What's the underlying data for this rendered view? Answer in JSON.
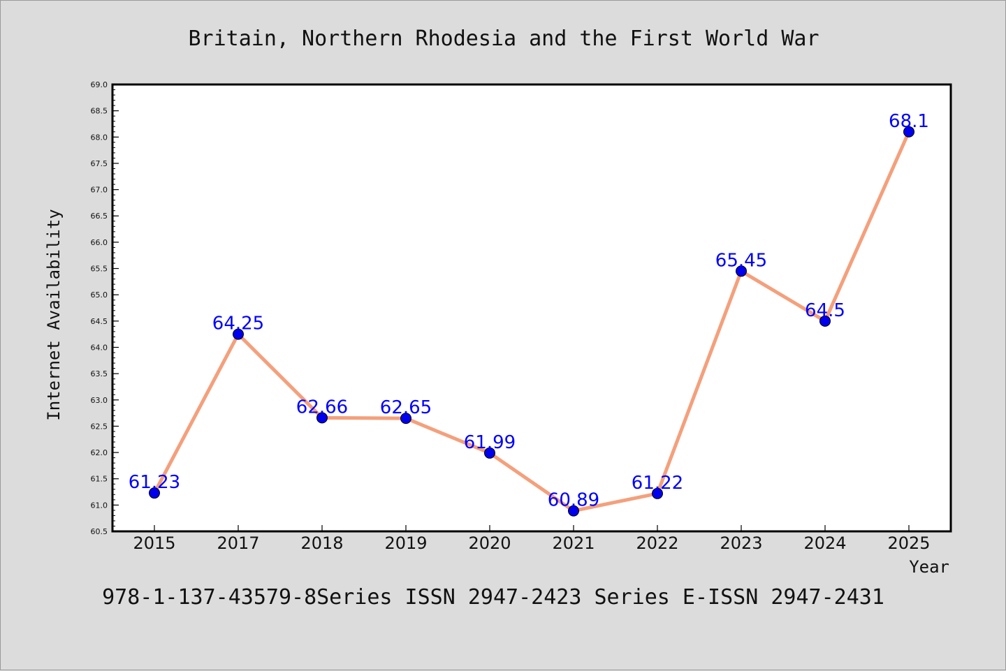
{
  "chart_data": {
    "type": "line",
    "title": "Britain, Northern Rhodesia and the First World War",
    "xlabel": "Year",
    "ylabel": "Internet Availability",
    "categories": [
      "2015",
      "2017",
      "2018",
      "2019",
      "2020",
      "2021",
      "2022",
      "2023",
      "2024",
      "2025"
    ],
    "series": [
      {
        "values": [
          61.23,
          64.25,
          62.66,
          62.65,
          61.99,
          60.89,
          61.22,
          65.45,
          64.5,
          68.1
        ],
        "labels": [
          "61.23",
          "64.25",
          "62.66",
          "62.65",
          "61.99",
          "60.89",
          "61.22",
          "65.45",
          "64.5",
          "68.1"
        ]
      }
    ],
    "ylim": [
      60.5,
      69.0
    ],
    "yticks": [
      60.5,
      61.0,
      61.5,
      62.0,
      62.5,
      63.0,
      63.5,
      64.0,
      64.5,
      65.0,
      65.5,
      66.0,
      66.5,
      67.0,
      67.5,
      68.0,
      68.5,
      69.0
    ],
    "ytick_labels": [
      "60.5",
      "61.0",
      "61.5",
      "62.0",
      "62.5",
      "63.0",
      "63.5",
      "64.0",
      "64.5",
      "65.0",
      "65.5",
      "66.0",
      "66.5",
      "67.0",
      "67.5",
      "68.0",
      "68.5",
      "69.0"
    ],
    "grid": false,
    "legend": "none",
    "colors": {
      "line": "#f4a07c",
      "marker": "#0000ee",
      "data_label": "#0000ff",
      "plot_background": "#ffffff",
      "figure_background": "#dcdcdc"
    },
    "footer": "978-1-137-43579-8Series ISSN 2947-2423 Series E-ISSN 2947-2431"
  }
}
